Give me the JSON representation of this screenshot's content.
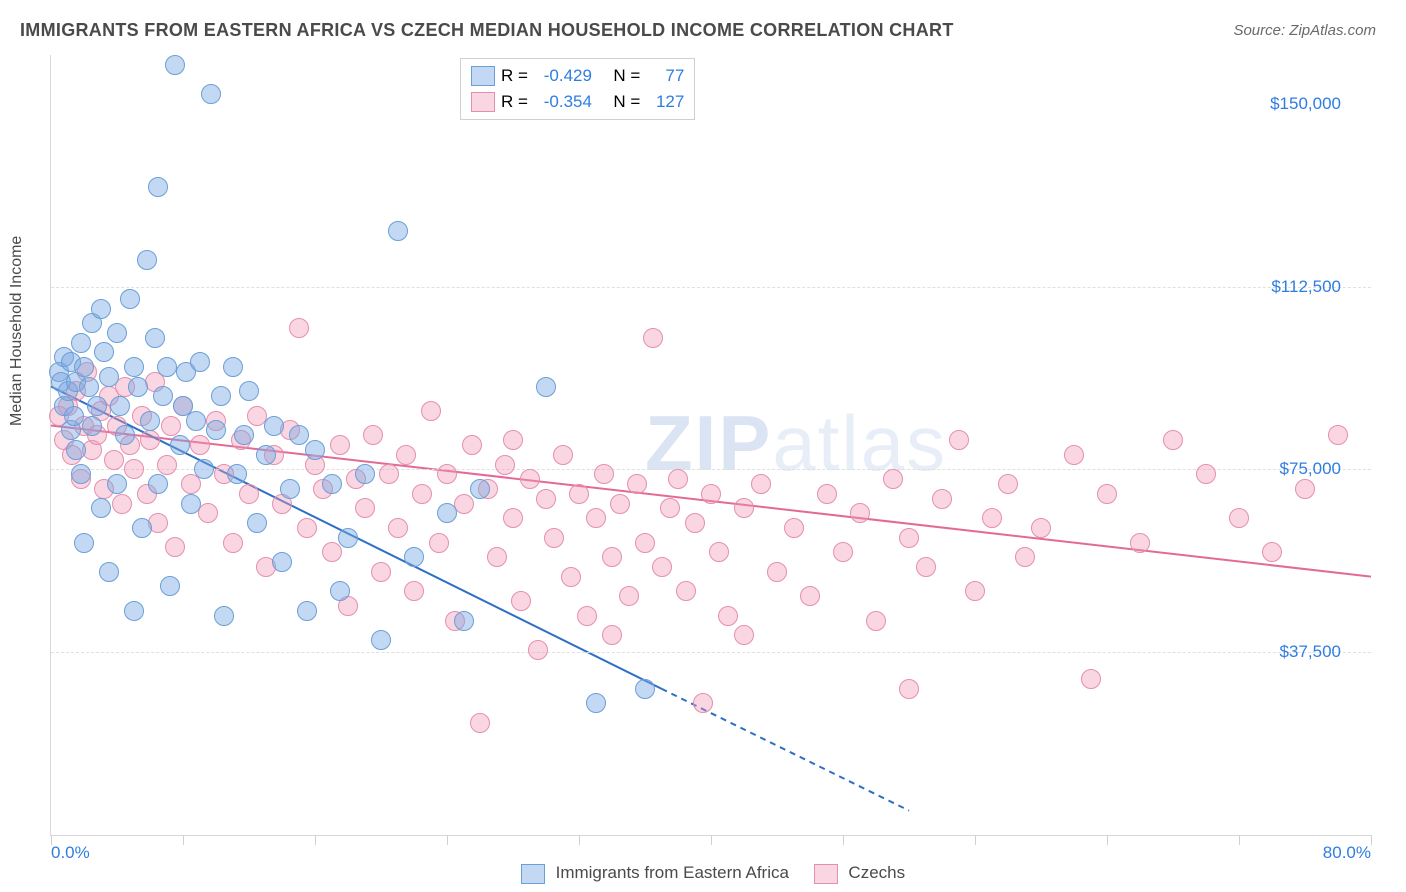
{
  "title": "IMMIGRANTS FROM EASTERN AFRICA VS CZECH MEDIAN HOUSEHOLD INCOME CORRELATION CHART",
  "source": "Source: ZipAtlas.com",
  "y_axis_label": "Median Household Income",
  "watermark": "ZIPatlas",
  "chart": {
    "type": "scatter",
    "background_color": "#ffffff",
    "grid_color": "#e0e0e0",
    "axis_color": "#d8d8d8",
    "tick_label_color": "#2f7de1",
    "text_color": "#4a4a4a",
    "title_fontsize": 18,
    "tick_fontsize": 17,
    "marker_radius": 9,
    "marker_stroke_width": 1.5,
    "xlim": [
      0,
      80
    ],
    "ylim": [
      0,
      160000
    ],
    "x_ticks": [
      0,
      8,
      16,
      24,
      32,
      40,
      48,
      56,
      64,
      72,
      80
    ],
    "x_tick_labels": {
      "0": "0.0%",
      "80": "80.0%"
    },
    "y_ticks": [
      37500,
      75000,
      112500,
      150000
    ],
    "y_tick_labels": {
      "37500": "$37,500",
      "75000": "$75,000",
      "112500": "$112,500",
      "150000": "$150,000"
    },
    "y_tick_show_grid": [
      37500,
      75000,
      112500
    ]
  },
  "series": {
    "blue": {
      "label": "Immigrants from Eastern Africa",
      "fill": "rgba(122,168,226,0.45)",
      "stroke": "#6b9fd8",
      "line_color": "#2e6fc4",
      "line_width": 2,
      "R": "-0.429",
      "N": "77",
      "regression": {
        "x1": 0,
        "y1": 92000,
        "x2_solid": 37,
        "y2_solid": 30000,
        "x2_dash": 52,
        "y2_dash": 5000
      },
      "points": [
        [
          0.5,
          95000
        ],
        [
          0.6,
          93000
        ],
        [
          0.8,
          88000
        ],
        [
          0.8,
          98000
        ],
        [
          1,
          91000
        ],
        [
          1.2,
          83000
        ],
        [
          1.2,
          97000
        ],
        [
          1.4,
          86000
        ],
        [
          1.5,
          93000
        ],
        [
          1.5,
          79000
        ],
        [
          1.8,
          101000
        ],
        [
          1.8,
          74000
        ],
        [
          2,
          96000
        ],
        [
          2,
          60000
        ],
        [
          2.3,
          92000
        ],
        [
          2.5,
          105000
        ],
        [
          2.5,
          84000
        ],
        [
          2.8,
          88000
        ],
        [
          3,
          108000
        ],
        [
          3,
          67000
        ],
        [
          3.2,
          99000
        ],
        [
          3.5,
          94000
        ],
        [
          3.5,
          54000
        ],
        [
          4,
          103000
        ],
        [
          4,
          72000
        ],
        [
          4.2,
          88000
        ],
        [
          4.5,
          82000
        ],
        [
          4.8,
          110000
        ],
        [
          5,
          96000
        ],
        [
          5,
          46000
        ],
        [
          5.3,
          92000
        ],
        [
          5.5,
          63000
        ],
        [
          5.8,
          118000
        ],
        [
          6,
          85000
        ],
        [
          6.3,
          102000
        ],
        [
          6.5,
          72000
        ],
        [
          6.5,
          133000
        ],
        [
          6.8,
          90000
        ],
        [
          7,
          96000
        ],
        [
          7.2,
          51000
        ],
        [
          7.5,
          158000
        ],
        [
          7.8,
          80000
        ],
        [
          8,
          88000
        ],
        [
          8.2,
          95000
        ],
        [
          8.5,
          68000
        ],
        [
          8.8,
          85000
        ],
        [
          9,
          97000
        ],
        [
          9.3,
          75000
        ],
        [
          9.7,
          152000
        ],
        [
          10,
          83000
        ],
        [
          10.3,
          90000
        ],
        [
          10.5,
          45000
        ],
        [
          11,
          96000
        ],
        [
          11.3,
          74000
        ],
        [
          11.7,
          82000
        ],
        [
          12,
          91000
        ],
        [
          12.5,
          64000
        ],
        [
          13,
          78000
        ],
        [
          13.5,
          84000
        ],
        [
          14,
          56000
        ],
        [
          14.5,
          71000
        ],
        [
          15,
          82000
        ],
        [
          15.5,
          46000
        ],
        [
          16,
          79000
        ],
        [
          17,
          72000
        ],
        [
          17.5,
          50000
        ],
        [
          18,
          61000
        ],
        [
          19,
          74000
        ],
        [
          20,
          40000
        ],
        [
          21,
          124000
        ],
        [
          22,
          57000
        ],
        [
          24,
          66000
        ],
        [
          25,
          44000
        ],
        [
          26,
          71000
        ],
        [
          30,
          92000
        ],
        [
          33,
          27000
        ],
        [
          36,
          30000
        ]
      ]
    },
    "pink": {
      "label": "Czechs",
      "fill": "rgba(240,152,180,0.40)",
      "stroke": "#e58fae",
      "line_color": "#e36a98",
      "line_width": 2,
      "R": "-0.354",
      "N": "127",
      "regression": {
        "x1": 0,
        "y1": 84000,
        "x2_solid": 80,
        "y2_solid": 53000
      },
      "points": [
        [
          0.5,
          86000
        ],
        [
          0.8,
          81000
        ],
        [
          1,
          88000
        ],
        [
          1.3,
          78000
        ],
        [
          1.5,
          91000
        ],
        [
          1.8,
          73000
        ],
        [
          2,
          84000
        ],
        [
          2.2,
          95000
        ],
        [
          2.5,
          79000
        ],
        [
          2.8,
          82000
        ],
        [
          3,
          87000
        ],
        [
          3.2,
          71000
        ],
        [
          3.5,
          90000
        ],
        [
          3.8,
          77000
        ],
        [
          4,
          84000
        ],
        [
          4.3,
          68000
        ],
        [
          4.5,
          92000
        ],
        [
          4.8,
          80000
        ],
        [
          5,
          75000
        ],
        [
          5.5,
          86000
        ],
        [
          5.8,
          70000
        ],
        [
          6,
          81000
        ],
        [
          6.3,
          93000
        ],
        [
          6.5,
          64000
        ],
        [
          7,
          76000
        ],
        [
          7.3,
          84000
        ],
        [
          7.5,
          59000
        ],
        [
          8,
          88000
        ],
        [
          8.5,
          72000
        ],
        [
          9,
          80000
        ],
        [
          9.5,
          66000
        ],
        [
          10,
          85000
        ],
        [
          10.5,
          74000
        ],
        [
          11,
          60000
        ],
        [
          11.5,
          81000
        ],
        [
          12,
          70000
        ],
        [
          12.5,
          86000
        ],
        [
          13,
          55000
        ],
        [
          13.5,
          78000
        ],
        [
          14,
          68000
        ],
        [
          14.5,
          83000
        ],
        [
          15,
          104000
        ],
        [
          15.5,
          63000
        ],
        [
          16,
          76000
        ],
        [
          16.5,
          71000
        ],
        [
          17,
          58000
        ],
        [
          17.5,
          80000
        ],
        [
          18,
          47000
        ],
        [
          18.5,
          73000
        ],
        [
          19,
          67000
        ],
        [
          19.5,
          82000
        ],
        [
          20,
          54000
        ],
        [
          20.5,
          74000
        ],
        [
          21,
          63000
        ],
        [
          21.5,
          78000
        ],
        [
          22,
          50000
        ],
        [
          22.5,
          70000
        ],
        [
          23,
          87000
        ],
        [
          23.5,
          60000
        ],
        [
          24,
          74000
        ],
        [
          24.5,
          44000
        ],
        [
          25,
          68000
        ],
        [
          25.5,
          80000
        ],
        [
          26,
          23000
        ],
        [
          26.5,
          71000
        ],
        [
          27,
          57000
        ],
        [
          27.5,
          76000
        ],
        [
          28,
          65000
        ],
        [
          28.5,
          48000
        ],
        [
          29,
          73000
        ],
        [
          29.5,
          38000
        ],
        [
          30,
          69000
        ],
        [
          30.5,
          61000
        ],
        [
          31,
          78000
        ],
        [
          31.5,
          53000
        ],
        [
          32,
          70000
        ],
        [
          32.5,
          45000
        ],
        [
          33,
          65000
        ],
        [
          33.5,
          74000
        ],
        [
          34,
          57000
        ],
        [
          34.5,
          68000
        ],
        [
          35,
          49000
        ],
        [
          35.5,
          72000
        ],
        [
          36,
          60000
        ],
        [
          36.5,
          102000
        ],
        [
          37,
          55000
        ],
        [
          37.5,
          67000
        ],
        [
          38,
          73000
        ],
        [
          38.5,
          50000
        ],
        [
          39,
          64000
        ],
        [
          39.5,
          27000
        ],
        [
          40,
          70000
        ],
        [
          40.5,
          58000
        ],
        [
          41,
          45000
        ],
        [
          42,
          67000
        ],
        [
          43,
          72000
        ],
        [
          44,
          54000
        ],
        [
          45,
          63000
        ],
        [
          46,
          49000
        ],
        [
          47,
          70000
        ],
        [
          48,
          58000
        ],
        [
          49,
          66000
        ],
        [
          50,
          44000
        ],
        [
          51,
          73000
        ],
        [
          52,
          61000
        ],
        [
          53,
          55000
        ],
        [
          54,
          69000
        ],
        [
          55,
          81000
        ],
        [
          56,
          50000
        ],
        [
          57,
          65000
        ],
        [
          58,
          72000
        ],
        [
          59,
          57000
        ],
        [
          60,
          63000
        ],
        [
          62,
          78000
        ],
        [
          63,
          32000
        ],
        [
          64,
          70000
        ],
        [
          66,
          60000
        ],
        [
          68,
          81000
        ],
        [
          70,
          74000
        ],
        [
          72,
          65000
        ],
        [
          74,
          58000
        ],
        [
          76,
          71000
        ],
        [
          78,
          82000
        ],
        [
          52,
          30000
        ],
        [
          34,
          41000
        ],
        [
          28,
          81000
        ],
        [
          42,
          41000
        ]
      ]
    }
  },
  "legend_top": {
    "R_label": "R =",
    "N_label": "N ="
  }
}
